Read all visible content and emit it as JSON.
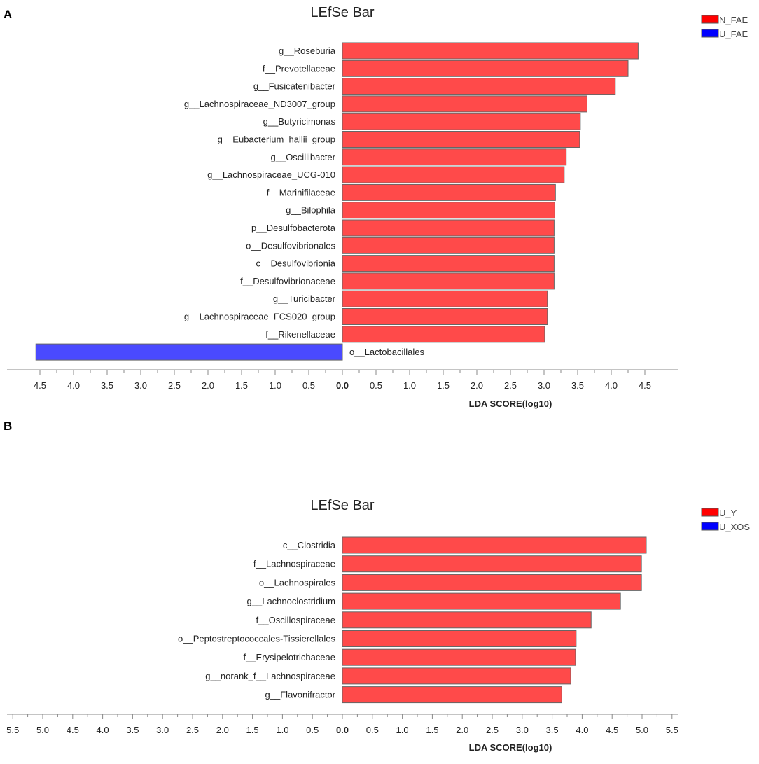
{
  "chart_data": [
    {
      "type": "bar",
      "orientation": "horizontal",
      "panel": "A",
      "title": "LEfSe Bar",
      "xlabel": "LDA SCORE(log10)",
      "ylabel": "",
      "xlim": [
        -5.0,
        5.0
      ],
      "xticks": [
        "4.5",
        "4.0",
        "3.5",
        "3.0",
        "2.5",
        "2.0",
        "1.5",
        "1.0",
        "0.5",
        "0.0",
        "0.5",
        "1.0",
        "1.5",
        "2.0",
        "2.5",
        "3.0",
        "3.5",
        "4.0",
        "4.5"
      ],
      "legend": [
        {
          "name": "N_FAE",
          "color": "#ff0000"
        },
        {
          "name": "U_FAE",
          "color": "#0000ff"
        }
      ],
      "legend_position": "top-right",
      "categories": [
        "g__Roseburia",
        "f__Prevotellaceae",
        "g__Fusicatenibacter",
        "g__Lachnospiraceae_ND3007_group",
        "g__Butyricimonas",
        "g__Eubacterium_hallii_group",
        "g__Oscillibacter",
        "g__Lachnospiraceae_UCG-010",
        "f__Marinifilaceae",
        "g__Bilophila",
        "p__Desulfobacterota",
        "o__Desulfovibrionales",
        "c__Desulfovibrionia",
        "f__Desulfovibrionaceae",
        "g__Turicibacter",
        "g__Lachnospiraceae_FCS020_group",
        "f__Rikenellaceae",
        "o__Lactobacillales"
      ],
      "values": [
        4.4,
        4.25,
        4.06,
        3.64,
        3.54,
        3.53,
        3.33,
        3.3,
        3.17,
        3.16,
        3.15,
        3.15,
        3.15,
        3.15,
        3.05,
        3.05,
        3.01,
        4.56
      ],
      "groups": [
        "N_FAE",
        "N_FAE",
        "N_FAE",
        "N_FAE",
        "N_FAE",
        "N_FAE",
        "N_FAE",
        "N_FAE",
        "N_FAE",
        "N_FAE",
        "N_FAE",
        "N_FAE",
        "N_FAE",
        "N_FAE",
        "N_FAE",
        "N_FAE",
        "N_FAE",
        "U_FAE"
      ]
    },
    {
      "type": "bar",
      "orientation": "horizontal",
      "panel": "B",
      "title": "LEfSe Bar",
      "xlabel": "LDA SCORE(log10)",
      "ylabel": "",
      "xlim": [
        -5.5,
        5.5
      ],
      "xticks": [
        "5.5",
        "5.0",
        "4.5",
        "4.0",
        "3.5",
        "3.0",
        "2.5",
        "2.0",
        "1.5",
        "1.0",
        "0.5",
        "0.0",
        "0.5",
        "1.0",
        "1.5",
        "2.0",
        "2.5",
        "3.0",
        "3.5",
        "4.0",
        "4.5",
        "5.0",
        "5.5"
      ],
      "legend": [
        {
          "name": "U_Y",
          "color": "#ff0000"
        },
        {
          "name": "U_XOS",
          "color": "#0000ff"
        }
      ],
      "legend_position": "top-right",
      "categories": [
        "c__Clostridia",
        "f__Lachnospiraceae",
        "o__Lachnospirales",
        "g__Lachnoclostridium",
        "f__Oscillospiraceae",
        "o__Peptostreptococcales-Tissierellales",
        "f__Erysipelotrichaceae",
        "g__norank_f__Lachnospiraceae",
        "g__Flavonifractor"
      ],
      "values": [
        5.07,
        4.99,
        4.99,
        4.64,
        4.15,
        3.9,
        3.89,
        3.81,
        3.66
      ],
      "groups": [
        "U_Y",
        "U_Y",
        "U_Y",
        "U_Y",
        "U_Y",
        "U_Y",
        "U_Y",
        "U_Y",
        "U_Y"
      ]
    }
  ],
  "colors": {
    "positive_bar": "#ff4a4a",
    "negative_bar": "#4a4aff",
    "legend_red": "#ff0000",
    "legend_blue": "#0000ff"
  }
}
